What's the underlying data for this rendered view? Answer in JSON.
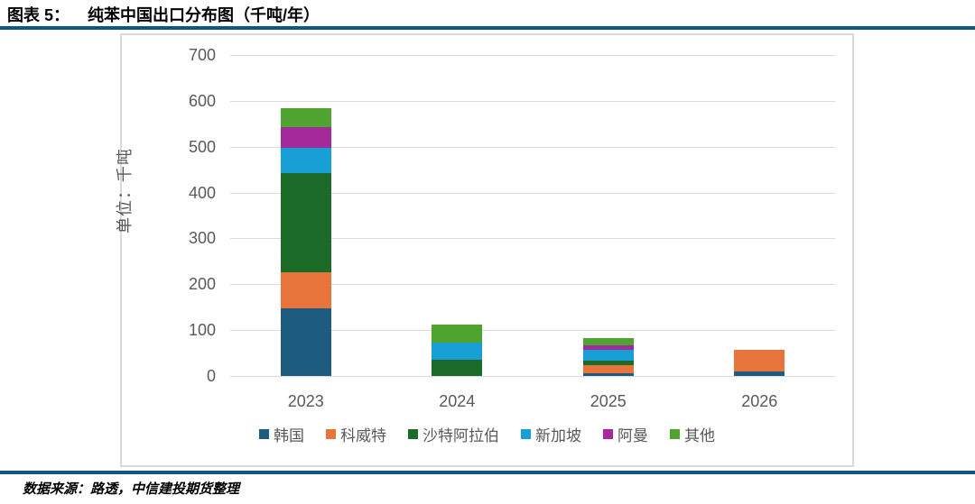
{
  "header": {
    "label": "图表 5：",
    "title": "纯苯中国出口分布图（千吨/年）"
  },
  "source": "数据来源：路透，中信建投期货整理",
  "accent_color": "#0F5680",
  "chart_data": {
    "type": "bar",
    "stacked": true,
    "title": "纯苯中国出口分布图（千吨/年）",
    "ylabel": "单位：千吨",
    "xlabel": "",
    "categories": [
      "2023",
      "2024",
      "2025",
      "2026"
    ],
    "series": [
      {
        "key": "korea",
        "name": "韩国",
        "color": "#1E5C7F",
        "values": [
          148,
          0,
          5,
          10
        ]
      },
      {
        "key": "kuwait",
        "name": "科威特",
        "color": "#E7743B",
        "values": [
          79,
          0,
          18,
          48
        ]
      },
      {
        "key": "saudi-arabia",
        "name": "沙特阿拉伯",
        "color": "#1D6B28",
        "values": [
          216,
          36,
          10,
          0
        ]
      },
      {
        "key": "singapore",
        "name": "新加坡",
        "color": "#189FD6",
        "values": [
          54,
          36,
          25,
          0
        ]
      },
      {
        "key": "oman",
        "name": "阿曼",
        "color": "#A42A9C",
        "values": [
          46,
          0,
          8,
          0
        ]
      },
      {
        "key": "others",
        "name": "其他",
        "color": "#4FA32F",
        "values": [
          42,
          41,
          17,
          0
        ]
      }
    ],
    "totals": [
      585,
      113,
      83,
      58
    ],
    "ylim": [
      0,
      700
    ],
    "yticks": [
      0,
      100,
      200,
      300,
      400,
      500,
      600,
      700
    ],
    "grid": true,
    "legend_position": "bottom",
    "grid_color": "#DBDBDB",
    "tick_color": "#595959"
  }
}
